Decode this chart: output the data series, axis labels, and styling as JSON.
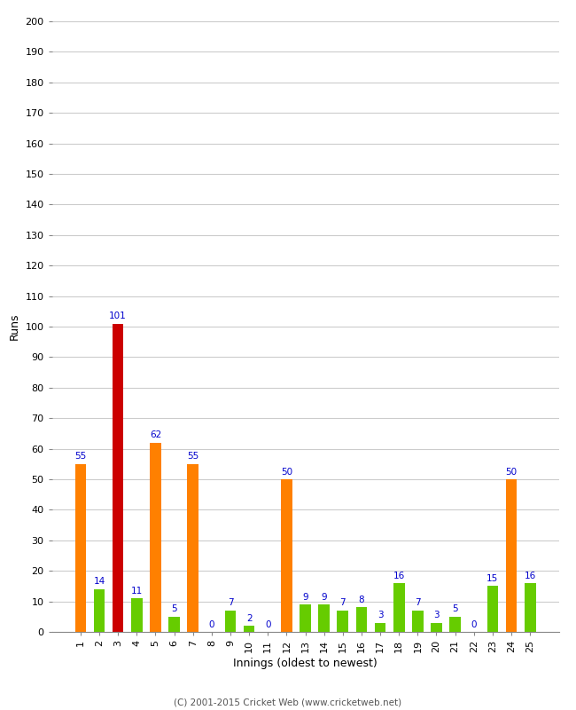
{
  "xlabel": "Innings (oldest to newest)",
  "ylabel": "Runs",
  "categories": [
    1,
    2,
    3,
    4,
    5,
    6,
    7,
    8,
    9,
    10,
    11,
    12,
    13,
    14,
    15,
    16,
    17,
    18,
    19,
    20,
    21,
    22,
    23,
    24,
    25
  ],
  "values": [
    55,
    14,
    101,
    11,
    62,
    5,
    55,
    0,
    7,
    2,
    0,
    50,
    9,
    9,
    7,
    8,
    3,
    16,
    7,
    3,
    5,
    0,
    15,
    50,
    16
  ],
  "colors": [
    "#ff8000",
    "#66cc00",
    "#cc0000",
    "#66cc00",
    "#ff8000",
    "#66cc00",
    "#ff8000",
    "#66cc00",
    "#66cc00",
    "#66cc00",
    "#66cc00",
    "#ff8000",
    "#66cc00",
    "#66cc00",
    "#66cc00",
    "#66cc00",
    "#66cc00",
    "#66cc00",
    "#66cc00",
    "#66cc00",
    "#66cc00",
    "#66cc00",
    "#66cc00",
    "#ff8000",
    "#66cc00"
  ],
  "ylim": [
    0,
    200
  ],
  "yticks": [
    0,
    10,
    20,
    30,
    40,
    50,
    60,
    70,
    80,
    90,
    100,
    110,
    120,
    130,
    140,
    150,
    160,
    170,
    180,
    190,
    200
  ],
  "label_color": "#0000cc",
  "background_color": "#ffffff",
  "grid_color": "#cccccc",
  "footer": "(C) 2001-2015 Cricket Web (www.cricketweb.net)"
}
